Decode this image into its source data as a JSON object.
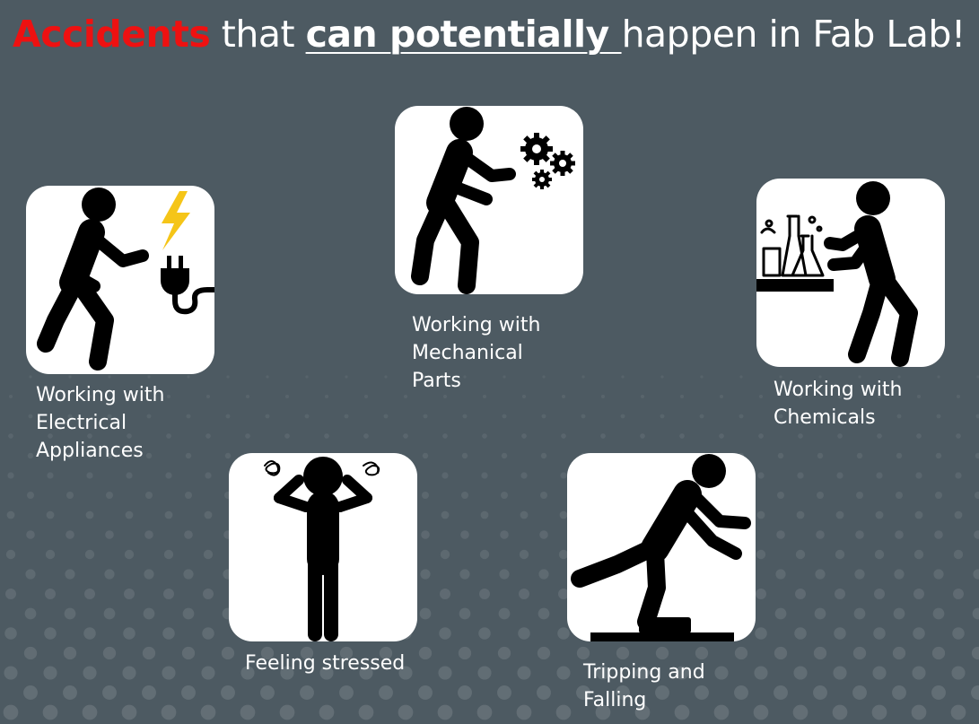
{
  "title": {
    "part1": "Accidents",
    "part2": " that ",
    "part3": "can potentially ",
    "part4": "happen in Fab Lab!"
  },
  "hazards": [
    {
      "icon": "electrical-worker-icon",
      "line1": "Working with",
      "line2": "Electrical",
      "line3": "Appliances"
    },
    {
      "icon": "mechanical-worker-icon",
      "line1": "Working with",
      "line2": "Mechanical",
      "line3": "Parts"
    },
    {
      "icon": "chemical-worker-icon",
      "line1": "Working with",
      "line2": "Chemicals"
    },
    {
      "icon": "stressed-person-icon",
      "line1": "Feeling stressed"
    },
    {
      "icon": "tripping-person-icon",
      "line1": "Tripping and",
      "line2": "Falling"
    }
  ],
  "colors": {
    "background": "#4d5a62",
    "accent": "#ee1111",
    "text": "#ffffff",
    "card": "#ffffff",
    "icon": "#000000"
  }
}
